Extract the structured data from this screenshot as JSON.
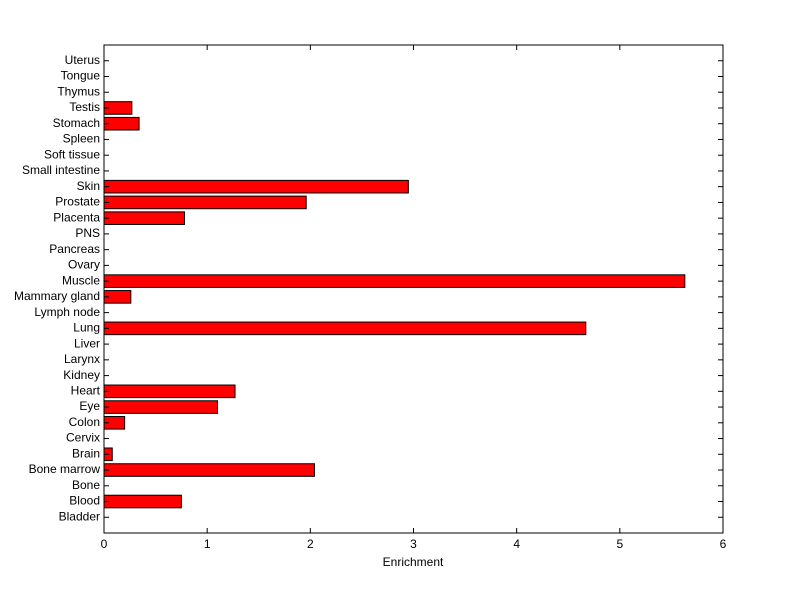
{
  "chart_data": {
    "type": "barh",
    "xlabel": "Enrichment",
    "categories": [
      "Bladder",
      "Blood",
      "Bone",
      "Bone marrow",
      "Brain",
      "Cervix",
      "Colon",
      "Eye",
      "Heart",
      "Kidney",
      "Larynx",
      "Liver",
      "Lung",
      "Lymph node",
      "Mammary gland",
      "Muscle",
      "Ovary",
      "Pancreas",
      "PNS",
      "Placenta",
      "Prostate",
      "Skin",
      "Small intestine",
      "Soft tissue",
      "Spleen",
      "Stomach",
      "Testis",
      "Thymus",
      "Tongue",
      "Uterus"
    ],
    "values": [
      0,
      0.75,
      0,
      2.04,
      0.08,
      0,
      0.2,
      1.1,
      1.27,
      0,
      0,
      0,
      4.67,
      0,
      0.26,
      5.63,
      0,
      0,
      0,
      0.78,
      1.96,
      2.95,
      0,
      0,
      0,
      0.34,
      0.27,
      0,
      0,
      0
    ],
    "color": "#ff0000",
    "xlim": [
      0,
      6
    ],
    "xticks": [
      0,
      1,
      2,
      3,
      4,
      5,
      6
    ]
  }
}
